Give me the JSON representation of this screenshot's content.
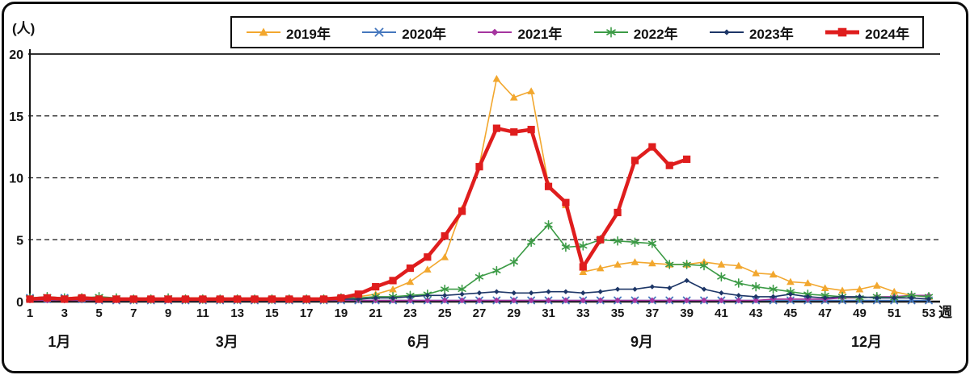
{
  "chart_data": {
    "type": "line",
    "ylabel": "(人)",
    "xlabel": "週",
    "ylim": [
      0,
      20
    ],
    "yticks": [
      0,
      5,
      10,
      15,
      20
    ],
    "xticks": [
      1,
      3,
      5,
      7,
      9,
      11,
      13,
      15,
      17,
      19,
      21,
      23,
      25,
      27,
      29,
      31,
      33,
      35,
      37,
      39,
      41,
      43,
      45,
      47,
      49,
      51,
      53
    ],
    "weeks": 53,
    "grid": "dashed-horizontal",
    "legend_position": "top",
    "month_labels": [
      {
        "label": "1月",
        "week": 2.7
      },
      {
        "label": "3月",
        "week": 12.4
      },
      {
        "label": "6月",
        "week": 23.5
      },
      {
        "label": "9月",
        "week": 36.4
      },
      {
        "label": "12月",
        "week": 49.4
      }
    ],
    "series": [
      {
        "name": "2019年",
        "color": "#f2a72e",
        "marker": "triangle",
        "line_width": 1.6,
        "values": [
          0.3,
          0.2,
          0.3,
          0.4,
          0.3,
          0.3,
          0.2,
          0.3,
          0.2,
          0.3,
          0.3,
          0.2,
          0.3,
          0.2,
          0.3,
          0.3,
          0.2,
          0.3,
          0.3,
          0.4,
          0.6,
          1.0,
          1.6,
          2.6,
          3.6,
          7.5,
          11.0,
          18.0,
          16.5,
          17.0,
          9.5,
          7.8,
          2.4,
          2.7,
          3.0,
          3.2,
          3.1,
          3.0,
          3.0,
          3.2,
          3.0,
          2.9,
          2.3,
          2.2,
          1.6,
          1.5,
          1.1,
          0.9,
          1.0,
          1.3,
          0.8,
          0.5,
          0.4
        ]
      },
      {
        "name": "2020年",
        "color": "#4577bd",
        "marker": "x",
        "line_width": 1.6,
        "values": [
          0.3,
          0.2,
          0.3,
          0.2,
          0.1,
          0.1,
          0.1,
          0.1,
          0.1,
          0.1,
          0.1,
          0.1,
          0.1,
          0.1,
          0.1,
          0.1,
          0.1,
          0.1,
          0.1,
          0.1,
          0.1,
          0.1,
          0.1,
          0.1,
          0.1,
          0.1,
          0.1,
          0.1,
          0.1,
          0.1,
          0.1,
          0.1,
          0.1,
          0.1,
          0.1,
          0.1,
          0.1,
          0.1,
          0.1,
          0.1,
          0.1,
          0.1,
          0.1,
          0.1,
          0.1,
          0.1,
          0.1,
          0.1,
          0.1,
          0.1,
          0.1,
          0.1,
          0.1
        ]
      },
      {
        "name": "2021年",
        "color": "#a5359f",
        "marker": "diamond",
        "line_width": 1.6,
        "values": [
          0.1,
          0.1,
          0.1,
          0.1,
          0.1,
          0.1,
          0.1,
          0.1,
          0.1,
          0.1,
          0.1,
          0.1,
          0.1,
          0.1,
          0.1,
          0.1,
          0.1,
          0.1,
          0.1,
          0.1,
          0.1,
          0.1,
          0.1,
          0.1,
          0.1,
          0.1,
          0.1,
          0.1,
          0.1,
          0.1,
          0.1,
          0.1,
          0.1,
          0.1,
          0.1,
          0.1,
          0.1,
          0.1,
          0.1,
          0.1,
          0.1,
          0.1,
          0.1,
          0.2,
          0.2,
          0.2,
          0.2,
          0.3,
          0.3,
          0.4,
          0.4,
          0.5,
          0.5
        ]
      },
      {
        "name": "2022年",
        "color": "#3c9b46",
        "marker": "asterisk",
        "line_width": 1.6,
        "values": [
          0.3,
          0.4,
          0.3,
          0.3,
          0.4,
          0.3,
          0.2,
          0.2,
          0.3,
          0.2,
          0.2,
          0.2,
          0.2,
          0.2,
          0.2,
          0.2,
          0.2,
          0.2,
          0.3,
          0.3,
          0.4,
          0.4,
          0.5,
          0.6,
          1.0,
          1.0,
          2.0,
          2.5,
          3.2,
          4.8,
          6.2,
          4.4,
          4.5,
          5.0,
          4.9,
          4.8,
          4.7,
          3.0,
          3.0,
          2.9,
          2.0,
          1.5,
          1.2,
          1.0,
          0.8,
          0.6,
          0.5,
          0.4,
          0.3,
          0.4,
          0.3,
          0.5,
          0.4
        ]
      },
      {
        "name": "2023年",
        "color": "#1d3667",
        "marker": "diamond-small",
        "line_width": 1.6,
        "values": [
          0.2,
          0.2,
          0.1,
          0.2,
          0.1,
          0.1,
          0.1,
          0.1,
          0.1,
          0.1,
          0.1,
          0.1,
          0.1,
          0.1,
          0.1,
          0.1,
          0.1,
          0.1,
          0.2,
          0.2,
          0.3,
          0.3,
          0.4,
          0.5,
          0.5,
          0.6,
          0.7,
          0.8,
          0.7,
          0.7,
          0.8,
          0.8,
          0.7,
          0.8,
          1.0,
          1.0,
          1.2,
          1.1,
          1.7,
          1.0,
          0.7,
          0.5,
          0.4,
          0.4,
          0.6,
          0.4,
          0.3,
          0.4,
          0.4,
          0.3,
          0.3,
          0.3,
          0.2
        ]
      },
      {
        "name": "2024年",
        "color": "#df1d1d",
        "marker": "square",
        "line_width": 4.5,
        "values": [
          0.2,
          0.3,
          0.2,
          0.3,
          0.2,
          0.2,
          0.2,
          0.2,
          0.2,
          0.2,
          0.2,
          0.2,
          0.2,
          0.2,
          0.2,
          0.2,
          0.2,
          0.2,
          0.3,
          0.6,
          1.2,
          1.7,
          2.7,
          3.6,
          5.3,
          7.3,
          10.9,
          14.0,
          13.7,
          13.9,
          9.3,
          8.0,
          2.8,
          5.0,
          7.2,
          11.4,
          12.5,
          11.0,
          11.5,
          null,
          null,
          null,
          null,
          null,
          null,
          null,
          null,
          null,
          null,
          null,
          null,
          null,
          null
        ]
      }
    ]
  }
}
